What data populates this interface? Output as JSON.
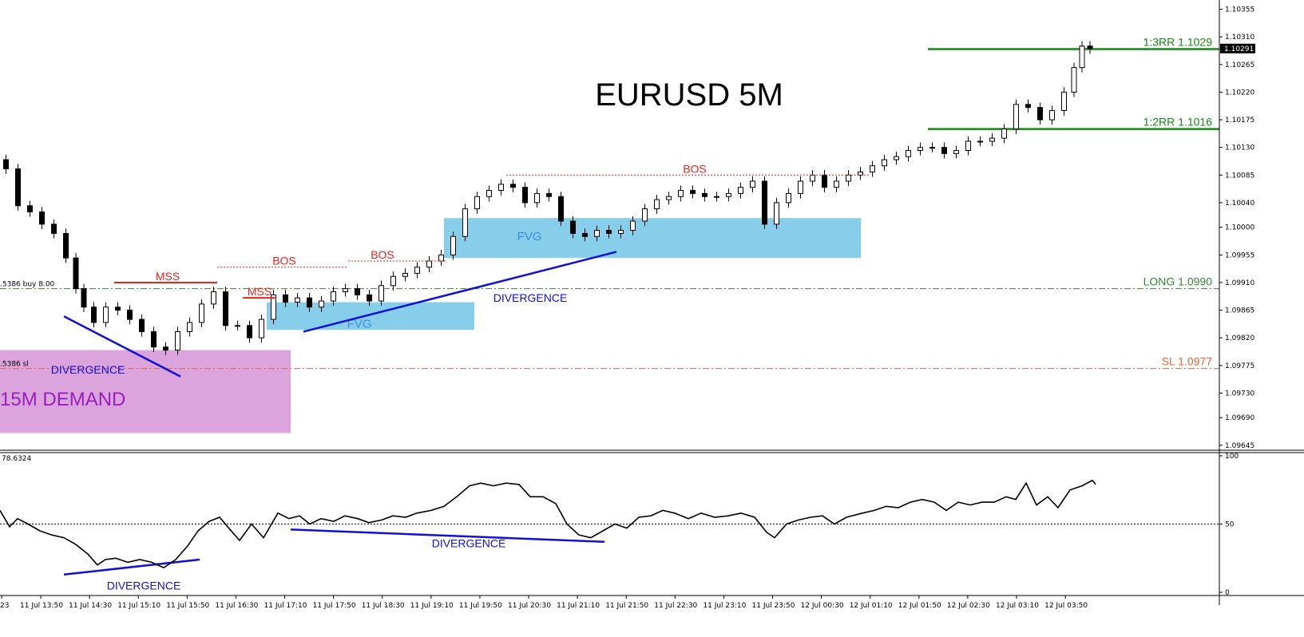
{
  "chart_data": {
    "type": "candlestick",
    "title": "EURUSD 5M",
    "price_axis": {
      "ticks": [
        "1.10355",
        "1.10310",
        "1.10265",
        "1.10220",
        "1.10175",
        "1.10130",
        "1.10085",
        "1.10040",
        "1.10000",
        "1.09955",
        "1.09910",
        "1.09865",
        "1.09820",
        "1.09775",
        "1.09730",
        "1.09690",
        "1.09645"
      ],
      "range": [
        1.09637,
        1.1037
      ],
      "current_price_label": "1.10291",
      "current_price": 1.10291
    },
    "indicator": {
      "value_label": "78.6324",
      "ticks": [
        "100",
        "50",
        "0"
      ],
      "range": [
        0,
        100
      ],
      "midline": 50
    },
    "time_axis": {
      "ticks": [
        "23",
        "11 Jul 13:50",
        "11 Jul 14:30",
        "11 Jul 15:10",
        "11 Jul 15:50",
        "11 Jul 16:30",
        "11 Jul 17:10",
        "11 Jul 17:50",
        "11 Jul 18:30",
        "11 Jul 19:10",
        "11 Jul 19:50",
        "11 Jul 20:30",
        "11 Jul 21:10",
        "11 Jul 21:50",
        "11 Jul 22:30",
        "11 Jul 23:10",
        "11 Jul 23:50",
        "12 Jul 00:30",
        "12 Jul 01:10",
        "12 Jul 01:50",
        "12 Jul 02:30",
        "12 Jul 03:10",
        "12 Jul 03:50"
      ]
    },
    "levels": [
      {
        "label": "1:3RR 1.1029",
        "price": 1.1029,
        "color": "#138a13",
        "style": "solid"
      },
      {
        "label": "1:2RR 1.1016",
        "price": 1.1016,
        "color": "#138a13",
        "style": "solid"
      },
      {
        "label": "LONG 1.0990",
        "price": 1.099,
        "color": "#2e8b2e",
        "style": "dashdot"
      },
      {
        "label": "SL 1.0977",
        "price": 1.0977,
        "color": "#e8643c",
        "style": "dashdot"
      }
    ],
    "order_labels": {
      "buy": ".5386 buy 8.00",
      "sl": ".5386 sl"
    },
    "zones": [
      {
        "label": "15M DEMAND",
        "color": "#dca4dc",
        "text_color": "#9a1fbf"
      },
      {
        "label": "FVG",
        "color": "#87ceea",
        "text_color": "#3a8ee0"
      },
      {
        "label": "FVG",
        "color": "#87ceea",
        "text_color": "#3a8ee0"
      }
    ],
    "structure_labels": [
      "MSS",
      "MSS",
      "BOS",
      "BOS",
      "BOS"
    ],
    "divergence_labels": [
      "DIVERGENCE",
      "DIVERGENCE",
      "DIVERGENCE",
      "DIVERGENCE"
    ],
    "colors": {
      "structure": "#e8231e",
      "divergence": "#1010d8",
      "level": "#138a13"
    }
  }
}
